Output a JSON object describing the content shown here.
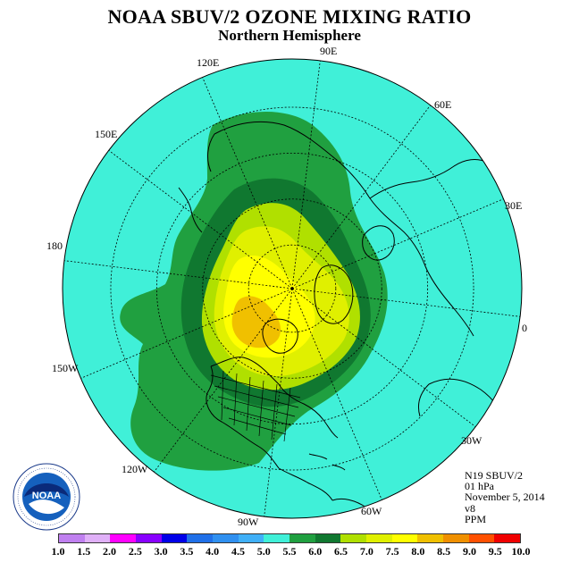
{
  "title": "NOAA SBUV/2 OZONE MIXING RATIO",
  "subtitle": "Northern Hemisphere",
  "longitude_labels": [
    "90E",
    "60E",
    "30E",
    "0",
    "30W",
    "60W",
    "90W",
    "120W",
    "150W",
    "180",
    "150E",
    "120E"
  ],
  "info": {
    "instrument": "N19 SBUV/2",
    "level": "01 hPa",
    "date": "November 5, 2014",
    "version": "v8",
    "units": "PPM"
  },
  "legend": {
    "ticks": [
      "1.0",
      "1.5",
      "2.0",
      "2.5",
      "3.0",
      "3.5",
      "4.0",
      "4.5",
      "5.0",
      "5.5",
      "6.0",
      "6.5",
      "7.0",
      "7.5",
      "8.0",
      "8.5",
      "9.0",
      "9.5",
      "10.0"
    ],
    "colors": [
      "#c080f0",
      "#e0b0f8",
      "#ff00ff",
      "#8800ff",
      "#0000e8",
      "#2070e8",
      "#3090f0",
      "#40b0f8",
      "#40f0d8",
      "#20a040",
      "#107830",
      "#b0e000",
      "#e0f000",
      "#ffff00",
      "#f0c000",
      "#f09000",
      "#ff5000",
      "#f00000",
      "#8b5a3c"
    ]
  },
  "map": {
    "background_color": "#40f0d8",
    "band_colors": {
      "5.0-5.5": "#20a040",
      "5.5-6.0": "#107830",
      "6.0-6.5": "#b0e000",
      "6.5-7.0": "#e0f000",
      "7.0-7.5": "#ffff00",
      "7.5-8.0": "#f0c000"
    }
  },
  "logo": {
    "text": "NOAA",
    "ring_text": "NATIONAL OCEANIC AND ATMOSPHERIC ADMINISTRATION · U.S. DEPARTMENT OF COMMERCE"
  }
}
